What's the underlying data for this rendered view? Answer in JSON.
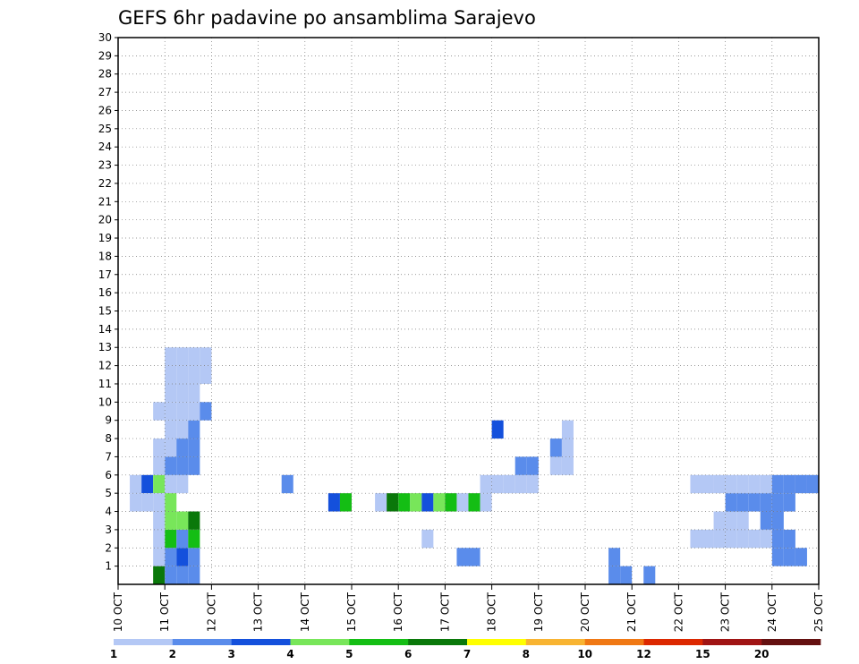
{
  "chart_data": {
    "type": "heatmap",
    "title": "GEFS 6hr padavine po ansamblima Sarajevo",
    "xlabel": "",
    "ylabel": "",
    "x_ticks": [
      "10 OCT",
      "11 OCT",
      "12 OCT",
      "13 OCT",
      "14 OCT",
      "15 OCT",
      "16 OCT",
      "17 OCT",
      "18 OCT",
      "19 OCT",
      "20 OCT",
      "21 OCT",
      "22 OCT",
      "23 OCT",
      "24 OCT",
      "25 OCT"
    ],
    "xlim": [
      0,
      60
    ],
    "y_ticks": [
      1,
      2,
      3,
      4,
      5,
      6,
      7,
      8,
      9,
      10,
      11,
      12,
      13,
      14,
      15,
      16,
      17,
      18,
      19,
      20,
      21,
      22,
      23,
      24,
      25,
      26,
      27,
      28,
      29,
      30
    ],
    "ylim": [
      0,
      30
    ],
    "grid": true,
    "legend": {
      "labels": [
        "1",
        "2",
        "3",
        "4",
        "5",
        "6",
        "7",
        "8",
        "10",
        "12",
        "15",
        "20"
      ],
      "colors": [
        "#b4c8f5",
        "#5a8ceb",
        "#1450dc",
        "#78e65a",
        "#14be14",
        "#0a780a",
        "#ffff00",
        "#f8b432",
        "#f07814",
        "#dc2800",
        "#a01414",
        "#641010"
      ],
      "placement": "bottom"
    },
    "cells": [
      {
        "x": 3,
        "y": 0,
        "c": 6
      },
      {
        "x": 4,
        "y": 0,
        "c": 2
      },
      {
        "x": 4,
        "y": 1,
        "c": 2
      },
      {
        "x": 4,
        "y": 2,
        "c": 5
      },
      {
        "x": 5,
        "y": 0,
        "c": 2
      },
      {
        "x": 5,
        "y": 1,
        "c": 3
      },
      {
        "x": 5,
        "y": 2,
        "c": 2
      },
      {
        "x": 5,
        "y": 3,
        "c": 4
      },
      {
        "x": 6,
        "y": 0,
        "c": 2
      },
      {
        "x": 6,
        "y": 1,
        "c": 2
      },
      {
        "x": 6,
        "y": 2,
        "c": 5
      },
      {
        "x": 6,
        "y": 3,
        "c": 6
      },
      {
        "x": 5,
        "y": 5,
        "c": 1
      },
      {
        "x": 2,
        "y": 5,
        "c": 3
      },
      {
        "x": 3,
        "y": 5,
        "c": 4
      },
      {
        "x": 4,
        "y": 5,
        "c": 1
      },
      {
        "x": 14,
        "y": 5,
        "c": 2
      },
      {
        "x": 18,
        "y": 4,
        "c": 3
      },
      {
        "x": 19,
        "y": 4,
        "c": 5
      },
      {
        "x": 22,
        "y": 4,
        "c": 1
      },
      {
        "x": 23,
        "y": 4,
        "c": 6
      },
      {
        "x": 24,
        "y": 4,
        "c": 5
      },
      {
        "x": 25,
        "y": 4,
        "c": 4
      },
      {
        "x": 26,
        "y": 4,
        "c": 3
      },
      {
        "x": 26,
        "y": 2,
        "c": 1
      },
      {
        "x": 27,
        "y": 4,
        "c": 4
      },
      {
        "x": 28,
        "y": 4,
        "c": 5
      },
      {
        "x": 29,
        "y": 4,
        "c": 1
      },
      {
        "x": 30,
        "y": 4,
        "c": 5
      },
      {
        "x": 29,
        "y": 1,
        "c": 2
      },
      {
        "x": 30,
        "y": 1,
        "c": 2
      },
      {
        "x": 31,
        "y": 4,
        "c": 1
      },
      {
        "x": 31,
        "y": 5,
        "c": 1
      },
      {
        "x": 32,
        "y": 5,
        "c": 1
      },
      {
        "x": 33,
        "y": 5,
        "c": 1
      },
      {
        "x": 34,
        "y": 5,
        "c": 1
      },
      {
        "x": 35,
        "y": 5,
        "c": 1
      },
      {
        "x": 32,
        "y": 8,
        "c": 3
      },
      {
        "x": 34,
        "y": 6,
        "c": 2
      },
      {
        "x": 35,
        "y": 6,
        "c": 2
      },
      {
        "x": 37,
        "y": 6,
        "c": 1
      },
      {
        "x": 37,
        "y": 7,
        "c": 2
      },
      {
        "x": 38,
        "y": 6,
        "c": 1
      },
      {
        "x": 38,
        "y": 7,
        "c": 1
      },
      {
        "x": 38,
        "y": 8,
        "c": 1
      },
      {
        "x": 42,
        "y": 0,
        "c": 2
      },
      {
        "x": 42,
        "y": 1,
        "c": 2
      },
      {
        "x": 43,
        "y": 0,
        "c": 2
      },
      {
        "x": 45,
        "y": 0,
        "c": 2
      },
      {
        "x": 49,
        "y": 2,
        "c": 1
      },
      {
        "x": 50,
        "y": 2,
        "c": 1
      },
      {
        "x": 51,
        "y": 2,
        "c": 1
      },
      {
        "x": 52,
        "y": 2,
        "c": 1
      },
      {
        "x": 51,
        "y": 3,
        "c": 1
      },
      {
        "x": 52,
        "y": 3,
        "c": 1
      },
      {
        "x": 53,
        "y": 3,
        "c": 1
      },
      {
        "x": 55,
        "y": 3,
        "c": 2
      },
      {
        "x": 56,
        "y": 3,
        "c": 2
      },
      {
        "x": 56,
        "y": 2,
        "c": 2
      },
      {
        "x": 57,
        "y": 2,
        "c": 2
      },
      {
        "x": 53,
        "y": 2,
        "c": 1
      },
      {
        "x": 54,
        "y": 2,
        "c": 1
      },
      {
        "x": 55,
        "y": 2,
        "c": 1
      },
      {
        "x": 56,
        "y": 1,
        "c": 2
      },
      {
        "x": 57,
        "y": 1,
        "c": 2
      },
      {
        "x": 58,
        "y": 1,
        "c": 2
      },
      {
        "x": 52,
        "y": 4,
        "c": 2
      },
      {
        "x": 53,
        "y": 4,
        "c": 2
      },
      {
        "x": 54,
        "y": 4,
        "c": 2
      },
      {
        "x": 55,
        "y": 4,
        "c": 2
      },
      {
        "x": 56,
        "y": 4,
        "c": 2
      },
      {
        "x": 57,
        "y": 4,
        "c": 2
      },
      {
        "x": 49,
        "y": 5,
        "c": 1
      },
      {
        "x": 50,
        "y": 5,
        "c": 1
      },
      {
        "x": 51,
        "y": 5,
        "c": 1
      },
      {
        "x": 52,
        "y": 5,
        "c": 1
      },
      {
        "x": 53,
        "y": 5,
        "c": 1
      },
      {
        "x": 54,
        "y": 5,
        "c": 1
      },
      {
        "x": 55,
        "y": 5,
        "c": 1
      },
      {
        "x": 56,
        "y": 5,
        "c": 2
      },
      {
        "x": 57,
        "y": 5,
        "c": 2
      },
      {
        "x": 58,
        "y": 5,
        "c": 2
      },
      {
        "x": 59,
        "y": 5,
        "c": 2
      },
      {
        "x": 3,
        "y": 1,
        "c": 1
      },
      {
        "x": 4,
        "y": 3,
        "c": 4
      },
      {
        "x": 4,
        "y": 4,
        "c": 4
      },
      {
        "x": 3,
        "y": 3,
        "c": 1
      },
      {
        "x": 3,
        "y": 4,
        "c": 1
      },
      {
        "x": 4,
        "y": 6,
        "c": 2
      },
      {
        "x": 5,
        "y": 6,
        "c": 2
      },
      {
        "x": 6,
        "y": 6,
        "c": 2
      },
      {
        "x": 3,
        "y": 6,
        "c": 1
      },
      {
        "x": 3,
        "y": 7,
        "c": 1
      },
      {
        "x": 4,
        "y": 7,
        "c": 1
      },
      {
        "x": 5,
        "y": 7,
        "c": 2
      },
      {
        "x": 6,
        "y": 7,
        "c": 2
      },
      {
        "x": 4,
        "y": 8,
        "c": 1
      },
      {
        "x": 5,
        "y": 8,
        "c": 1
      },
      {
        "x": 6,
        "y": 8,
        "c": 2
      },
      {
        "x": 4,
        "y": 9,
        "c": 1
      },
      {
        "x": 5,
        "y": 9,
        "c": 1
      },
      {
        "x": 6,
        "y": 9,
        "c": 1
      },
      {
        "x": 7,
        "y": 9,
        "c": 2
      },
      {
        "x": 3,
        "y": 9,
        "c": 1
      },
      {
        "x": 4,
        "y": 10,
        "c": 1
      },
      {
        "x": 5,
        "y": 10,
        "c": 1
      },
      {
        "x": 6,
        "y": 10,
        "c": 1
      },
      {
        "x": 4,
        "y": 11,
        "c": 1
      },
      {
        "x": 5,
        "y": 11,
        "c": 1
      },
      {
        "x": 6,
        "y": 11,
        "c": 1
      },
      {
        "x": 7,
        "y": 11,
        "c": 1
      },
      {
        "x": 5,
        "y": 12,
        "c": 1
      },
      {
        "x": 6,
        "y": 12,
        "c": 1
      },
      {
        "x": 4,
        "y": 12,
        "c": 1
      },
      {
        "x": 7,
        "y": 12,
        "c": 1
      },
      {
        "x": 1,
        "y": 5,
        "c": 1
      },
      {
        "x": 2,
        "y": 4,
        "c": 1
      },
      {
        "x": 3,
        "y": 2,
        "c": 1
      },
      {
        "x": 1,
        "y": 4,
        "c": 1
      }
    ]
  }
}
